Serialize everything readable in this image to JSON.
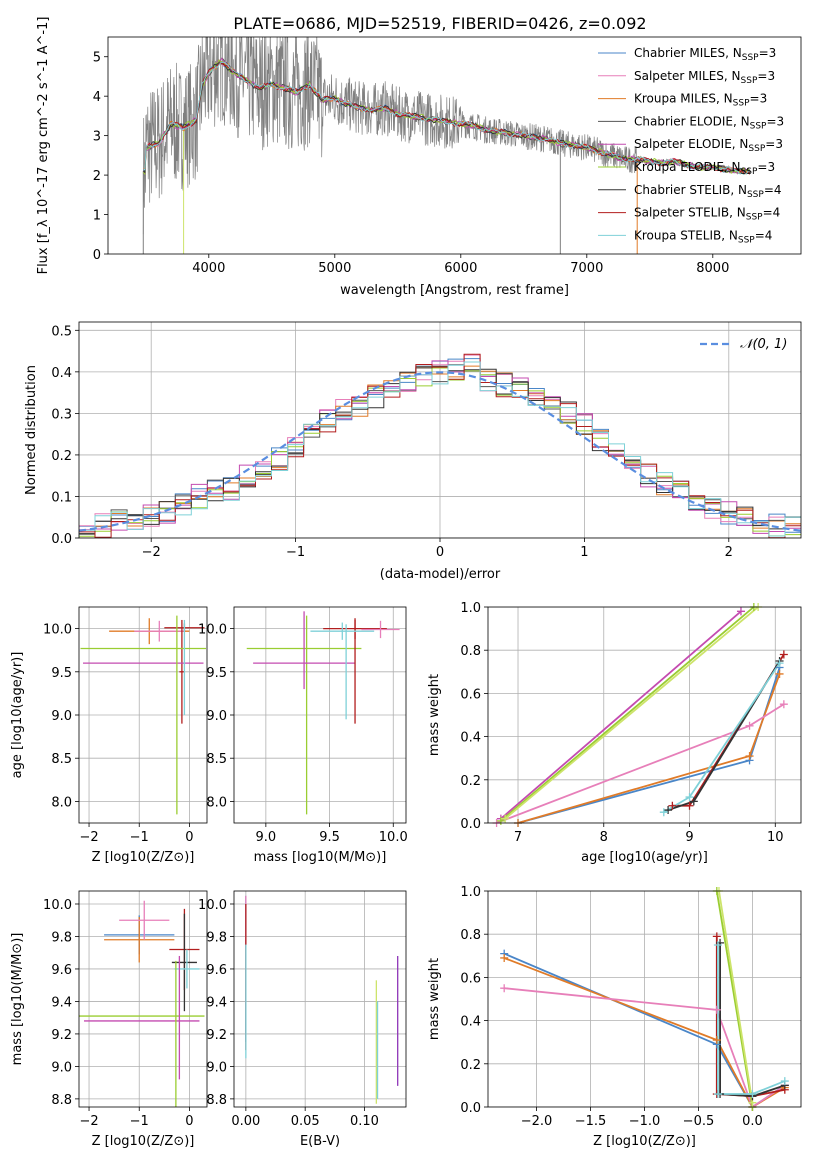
{
  "figure_title": "PLATE=0686, MJD=52519, FIBERID=0426, z=0.092",
  "colors": {
    "chabrier_miles": "#4a86c8",
    "salpeter_miles": "#e77fb9",
    "kroupa_miles": "#e07b28",
    "chabrier_elodie": "#555555",
    "salpeter_elodie": "#c44bb0",
    "kroupa_elodie": "#9acd32",
    "chabrier_stelib": "#333333",
    "salpeter_stelib": "#b21e1e",
    "kroupa_stelib": "#7fd1d8",
    "data": "#808080",
    "normal": "#5a8ee0",
    "purple": "#8e35b8",
    "olive": "#cde46b"
  },
  "chart_data": [
    {
      "type": "line",
      "xlabel": "wavelength [Angstrom, rest frame]",
      "ylabel": "Flux [f_λ 10^-17 erg cm^-2 s^-1 A^-1]",
      "xlim": [
        3200,
        8700
      ],
      "ylim": [
        0,
        5.5
      ],
      "xticks": [
        "4000",
        "5000",
        "6000",
        "7000",
        "8000"
      ],
      "yticks": [
        "0",
        "1",
        "2",
        "3",
        "4",
        "5"
      ],
      "grid": false,
      "legend_position": "top-right",
      "legend": [
        {
          "label": "Chabrier MILES, N",
          "sub": "SSP",
          "suffix": "=3",
          "color": "chabrier_miles"
        },
        {
          "label": "Salpeter MILES, N",
          "sub": "SSP",
          "suffix": "=3",
          "color": "salpeter_miles"
        },
        {
          "label": "Kroupa MILES, N",
          "sub": "SSP",
          "suffix": "=3",
          "color": "kroupa_miles"
        },
        {
          "label": "Chabrier ELODIE, N",
          "sub": "SSP",
          "suffix": "=3",
          "color": "chabrier_elodie"
        },
        {
          "label": "Salpeter ELODIE, N",
          "sub": "SSP",
          "suffix": "=3",
          "color": "salpeter_elodie"
        },
        {
          "label": "Kroupa ELODIE, N",
          "sub": "SSP",
          "suffix": "=3",
          "color": "kroupa_elodie"
        },
        {
          "label": "Chabrier STELIB, N",
          "sub": "SSP",
          "suffix": "=4",
          "color": "chabrier_stelib"
        },
        {
          "label": "Salpeter STELIB, N",
          "sub": "SSP",
          "suffix": "=4",
          "color": "salpeter_stelib"
        },
        {
          "label": "Kroupa STELIB, N",
          "sub": "SSP",
          "suffix": "=4",
          "color": "kroupa_stelib"
        }
      ],
      "model_continuum": [
        [
          3500,
          2.7
        ],
        [
          3600,
          2.8
        ],
        [
          3700,
          3.3
        ],
        [
          3800,
          3.2
        ],
        [
          3900,
          3.4
        ],
        [
          3950,
          4.3
        ],
        [
          4000,
          4.6
        ],
        [
          4100,
          4.9
        ],
        [
          4200,
          4.6
        ],
        [
          4300,
          4.4
        ],
        [
          4400,
          4.2
        ],
        [
          4500,
          4.3
        ],
        [
          4600,
          4.2
        ],
        [
          4700,
          4.1
        ],
        [
          4800,
          4.3
        ],
        [
          4900,
          3.9
        ],
        [
          5000,
          3.95
        ],
        [
          5100,
          3.8
        ],
        [
          5200,
          3.7
        ],
        [
          5300,
          3.65
        ],
        [
          5400,
          3.7
        ],
        [
          5500,
          3.55
        ],
        [
          5600,
          3.5
        ],
        [
          5700,
          3.45
        ],
        [
          5800,
          3.4
        ],
        [
          5900,
          3.35
        ],
        [
          6000,
          3.3
        ],
        [
          6100,
          3.25
        ],
        [
          6200,
          3.15
        ],
        [
          6300,
          3.1
        ],
        [
          6400,
          3.05
        ],
        [
          6500,
          3.0
        ],
        [
          6600,
          2.95
        ],
        [
          6700,
          2.9
        ],
        [
          6800,
          2.8
        ],
        [
          6900,
          2.75
        ],
        [
          7000,
          2.7
        ],
        [
          7100,
          2.6
        ],
        [
          7200,
          2.5
        ],
        [
          7300,
          2.4
        ],
        [
          7400,
          2.4
        ],
        [
          7500,
          2.35
        ],
        [
          7600,
          2.3
        ],
        [
          7700,
          2.35
        ],
        [
          7800,
          2.25
        ],
        [
          7900,
          2.2
        ],
        [
          8000,
          2.2
        ],
        [
          8100,
          2.15
        ],
        [
          8200,
          2.1
        ],
        [
          8300,
          2.1
        ]
      ],
      "data_spikes_below": [
        3480,
        3800,
        6790,
        7400
      ]
    },
    {
      "type": "line",
      "xlabel": "(data-model)/error",
      "ylabel": "Normed distribution",
      "xlim": [
        -2.5,
        2.5
      ],
      "ylim": [
        0,
        0.52
      ],
      "xticks": [
        "−2",
        "−1",
        "0",
        "1",
        "2"
      ],
      "yticks": [
        "0.0",
        "0.1",
        "0.2",
        "0.3",
        "0.4",
        "0.5"
      ],
      "grid": true,
      "legend_position": "top-right",
      "legend": [
        {
          "label": "𝒩(0, 1)",
          "color": "normal"
        }
      ],
      "histogram_base": [
        0.02,
        0.03,
        0.04,
        0.04,
        0.05,
        0.06,
        0.08,
        0.1,
        0.11,
        0.12,
        0.15,
        0.17,
        0.19,
        0.22,
        0.25,
        0.28,
        0.31,
        0.32,
        0.34,
        0.36,
        0.37,
        0.39,
        0.4,
        0.41,
        0.42,
        0.38,
        0.37,
        0.36,
        0.34,
        0.33,
        0.3,
        0.27,
        0.24,
        0.2,
        0.18,
        0.15,
        0.13,
        0.11,
        0.09,
        0.07,
        0.06,
        0.05,
        0.04,
        0.03,
        0.03
      ]
    },
    {
      "type": "scatter",
      "xlabel": "Z [log10(Z/Z⊙)]",
      "ylabel": "age  [log10(age/yr)]",
      "xlim": [
        -2.2,
        0.35
      ],
      "ylim": [
        7.75,
        10.25
      ],
      "xticks": [
        "−2",
        "−1",
        "0"
      ],
      "yticks": [
        "8.0",
        "8.5",
        "9.0",
        "9.5",
        "10.0"
      ],
      "grid": true,
      "errorbars": [
        {
          "x": -0.8,
          "y": 9.97,
          "xerr": 0.8,
          "yerr": 0.15,
          "color": "kroupa_miles"
        },
        {
          "x": -0.6,
          "y": 9.97,
          "xerr": 0.5,
          "yerr": 0.12,
          "color": "salpeter_miles"
        },
        {
          "x": -0.1,
          "y": 10.01,
          "xerr": 0.4,
          "yerr": 0.05,
          "color": "salpeter_stelib"
        },
        {
          "x": -0.15,
          "y": 9.5,
          "xerr": 0.05,
          "yerr": 0.6,
          "color": "salpeter_stelib"
        },
        {
          "x": -0.92,
          "y": 9.6,
          "xerr": 1.2,
          "yerr": 0.0,
          "color": "salpeter_elodie"
        },
        {
          "x": -0.92,
          "y": 9.77,
          "xerr": 1.25,
          "yerr": 0.0,
          "color": "kroupa_elodie"
        },
        {
          "x": -0.25,
          "y": 9.0,
          "xerr": 0.0,
          "yerr": 1.15,
          "color": "kroupa_elodie"
        },
        {
          "x": -0.1,
          "y": 9.55,
          "xerr": 0.0,
          "yerr": 0.55,
          "color": "kroupa_stelib"
        }
      ]
    },
    {
      "type": "scatter",
      "xlabel": "mass [log10(M/M⊙)]",
      "xlim": [
        8.75,
        10.1
      ],
      "ylim": [
        7.75,
        10.25
      ],
      "xticks": [
        "9.0",
        "9.5",
        "10.0"
      ],
      "yticks": [
        "8.0",
        "8.5",
        "9.0",
        "9.5",
        "10.0"
      ],
      "grid": true,
      "errorbars": [
        {
          "x": 9.3,
          "y": 9.77,
          "xerr": 0.45,
          "yerr": 0.0,
          "color": "kroupa_elodie"
        },
        {
          "x": 9.32,
          "y": 9.0,
          "xerr": 0.0,
          "yerr": 1.15,
          "color": "kroupa_elodie"
        },
        {
          "x": 9.3,
          "y": 9.75,
          "xerr": 0.0,
          "yerr": 0.45,
          "color": "salpeter_elodie"
        },
        {
          "x": 9.3,
          "y": 9.6,
          "xerr": 0.4,
          "yerr": 0.0,
          "color": "salpeter_elodie"
        },
        {
          "x": 9.7,
          "y": 10.0,
          "xerr": 0.25,
          "yerr": 0.12,
          "color": "salpeter_stelib"
        },
        {
          "x": 9.7,
          "y": 9.5,
          "xerr": 0.0,
          "yerr": 0.6,
          "color": "salpeter_stelib"
        },
        {
          "x": 9.6,
          "y": 9.97,
          "xerr": 0.25,
          "yerr": 0.1,
          "color": "kroupa_stelib"
        },
        {
          "x": 9.63,
          "y": 9.5,
          "xerr": 0.0,
          "yerr": 0.55,
          "color": "kroupa_stelib"
        },
        {
          "x": 9.9,
          "y": 9.99,
          "xerr": 0.15,
          "yerr": 0.1,
          "color": "salpeter_miles"
        }
      ]
    },
    {
      "type": "line",
      "xlabel": "age  [log10(age/yr)]",
      "ylabel": "mass weight",
      "xlim": [
        6.65,
        10.3
      ],
      "ylim": [
        0,
        1.0
      ],
      "xticks": [
        "7",
        "8",
        "9",
        "10"
      ],
      "yticks": [
        "0.0",
        "0.2",
        "0.4",
        "0.6",
        "0.8",
        "1.0"
      ],
      "grid": true,
      "series": [
        {
          "color": "chabrier_miles",
          "points": [
            [
              7.0,
              0.0
            ],
            [
              9.7,
              0.29
            ],
            [
              10.05,
              0.72
            ]
          ]
        },
        {
          "color": "kroupa_miles",
          "points": [
            [
              7.0,
              0.0
            ],
            [
              9.7,
              0.31
            ],
            [
              10.05,
              0.69
            ]
          ]
        },
        {
          "color": "salpeter_miles",
          "points": [
            [
              6.75,
              0.0
            ],
            [
              9.7,
              0.45
            ],
            [
              10.1,
              0.55
            ]
          ]
        },
        {
          "color": "salpeter_elodie",
          "points": [
            [
              6.8,
              0.02
            ],
            [
              9.6,
              0.98
            ]
          ]
        },
        {
          "color": "kroupa_elodie",
          "points": [
            [
              6.8,
              0.01
            ],
            [
              9.75,
              1.0
            ]
          ]
        },
        {
          "color": "olive",
          "points": [
            [
              6.85,
              0.02
            ],
            [
              9.8,
              1.0
            ]
          ]
        },
        {
          "color": "salpeter_stelib",
          "points": [
            [
              8.8,
              0.08
            ],
            [
              9.0,
              0.08
            ],
            [
              10.1,
              0.78
            ]
          ]
        },
        {
          "color": "chabrier_stelib",
          "points": [
            [
              8.75,
              0.06
            ],
            [
              9.05,
              0.1
            ],
            [
              10.05,
              0.75
            ]
          ]
        },
        {
          "color": "kroupa_stelib",
          "points": [
            [
              8.7,
              0.05
            ],
            [
              9.0,
              0.12
            ],
            [
              10.05,
              0.74
            ]
          ]
        }
      ]
    },
    {
      "type": "scatter",
      "xlabel": "Z [log10(Z/Z⊙)]",
      "ylabel": "mass [log10(M/M⊙)]",
      "xlim": [
        -2.2,
        0.35
      ],
      "ylim": [
        8.75,
        10.08
      ],
      "xticks": [
        "−2",
        "−1",
        "0"
      ],
      "yticks": [
        "8.8",
        "9.0",
        "9.2",
        "9.4",
        "9.6",
        "9.8",
        "10.0"
      ],
      "grid": true,
      "errorbars": [
        {
          "x": -1.0,
          "y": 9.81,
          "xerr": 0.7,
          "yerr": 0.12,
          "color": "chabrier_miles"
        },
        {
          "x": -1.0,
          "y": 9.78,
          "xerr": 0.7,
          "yerr": 0.14,
          "color": "kroupa_miles"
        },
        {
          "x": -0.9,
          "y": 9.9,
          "xerr": 0.5,
          "yerr": 0.12,
          "color": "salpeter_miles"
        },
        {
          "x": -0.1,
          "y": 9.72,
          "xerr": 0.3,
          "yerr": 0.25,
          "color": "salpeter_stelib"
        },
        {
          "x": -0.1,
          "y": 9.64,
          "xerr": 0.25,
          "yerr": 0.3,
          "color": "chabrier_stelib"
        },
        {
          "x": -0.05,
          "y": 9.6,
          "xerr": 0.25,
          "yerr": 0.12,
          "color": "kroupa_stelib"
        },
        {
          "x": -0.95,
          "y": 9.31,
          "xerr": 1.25,
          "yerr": 0.0,
          "color": "kroupa_elodie"
        },
        {
          "x": -0.95,
          "y": 9.28,
          "xerr": 1.15,
          "yerr": 0.0,
          "color": "salpeter_elodie"
        },
        {
          "x": -0.27,
          "y": 9.2,
          "xerr": 0.0,
          "yerr": 0.45,
          "color": "kroupa_elodie"
        },
        {
          "x": -0.2,
          "y": 9.3,
          "xerr": 0.0,
          "yerr": 0.38,
          "color": "salpeter_elodie"
        }
      ]
    },
    {
      "type": "scatter",
      "xlabel": "E(B-V)",
      "xlim": [
        -0.01,
        0.135
      ],
      "ylim": [
        8.75,
        10.08
      ],
      "xticks": [
        "0.00",
        "0.05",
        "0.10"
      ],
      "yticks": [
        "8.8",
        "9.0",
        "9.2",
        "9.4",
        "9.6",
        "9.8",
        "10.0"
      ],
      "grid": true,
      "errorbars": [
        {
          "x": 0.0,
          "y": 9.6,
          "xerr": 0.0,
          "yerr": 0.45,
          "color": "chabrier_miles"
        },
        {
          "x": 0.0,
          "y": 9.7,
          "xerr": 0.0,
          "yerr": 0.35,
          "color": "salpeter_miles"
        },
        {
          "x": 0.0,
          "y": 9.55,
          "xerr": 0.0,
          "yerr": 0.45,
          "color": "salpeter_stelib"
        },
        {
          "x": 0.0,
          "y": 9.4,
          "xerr": 0.0,
          "yerr": 0.35,
          "color": "kroupa_stelib"
        },
        {
          "x": 0.11,
          "y": 9.15,
          "xerr": 0.0,
          "yerr": 0.38,
          "color": "olive"
        },
        {
          "x": 0.111,
          "y": 9.1,
          "xerr": 0.0,
          "yerr": 0.3,
          "color": "kroupa_stelib"
        },
        {
          "x": 0.128,
          "y": 9.28,
          "xerr": 0.0,
          "yerr": 0.4,
          "color": "purple"
        }
      ]
    },
    {
      "type": "line",
      "xlabel": "Z [log10(Z/Z⊙)]",
      "ylabel": "mass weight",
      "xlim": [
        -2.45,
        0.45
      ],
      "ylim": [
        0,
        1.0
      ],
      "xticks": [
        "−2.0",
        "−1.5",
        "−1.0",
        "−0.5",
        "0.0"
      ],
      "yticks": [
        "0.0",
        "0.2",
        "0.4",
        "0.6",
        "0.8",
        "1.0"
      ],
      "grid": true,
      "series": [
        {
          "color": "chabrier_miles",
          "points": [
            [
              -2.3,
              0.71
            ],
            [
              -0.33,
              0.29
            ],
            [
              0.0,
              0.0
            ],
            [
              0.3,
              0.1
            ]
          ]
        },
        {
          "color": "kroupa_miles",
          "points": [
            [
              -2.3,
              0.69
            ],
            [
              -0.33,
              0.31
            ],
            [
              0.0,
              0.0
            ],
            [
              0.3,
              0.09
            ]
          ]
        },
        {
          "color": "salpeter_miles",
          "points": [
            [
              -2.3,
              0.55
            ],
            [
              -0.33,
              0.45
            ],
            [
              0.0,
              0.0
            ],
            [
              0.3,
              0.1
            ]
          ]
        },
        {
          "color": "kroupa_elodie",
          "points": [
            [
              -0.33,
              1.0
            ],
            [
              0.0,
              0.0
            ]
          ]
        },
        {
          "color": "olive",
          "points": [
            [
              -0.31,
              1.0
            ],
            [
              0.0,
              0.02
            ]
          ]
        },
        {
          "color": "salpeter_stelib",
          "points": [
            [
              -0.33,
              0.79
            ],
            [
              -0.33,
              0.06
            ],
            [
              0.0,
              0.05
            ],
            [
              0.3,
              0.08
            ]
          ]
        },
        {
          "color": "chabrier_stelib",
          "points": [
            [
              -0.3,
              0.76
            ],
            [
              -0.3,
              0.06
            ],
            [
              0.0,
              0.05
            ],
            [
              0.3,
              0.1
            ]
          ]
        },
        {
          "color": "kroupa_stelib",
          "points": [
            [
              -0.32,
              0.75
            ],
            [
              -0.32,
              0.06
            ],
            [
              0.0,
              0.06
            ],
            [
              0.3,
              0.12
            ]
          ]
        }
      ]
    }
  ]
}
